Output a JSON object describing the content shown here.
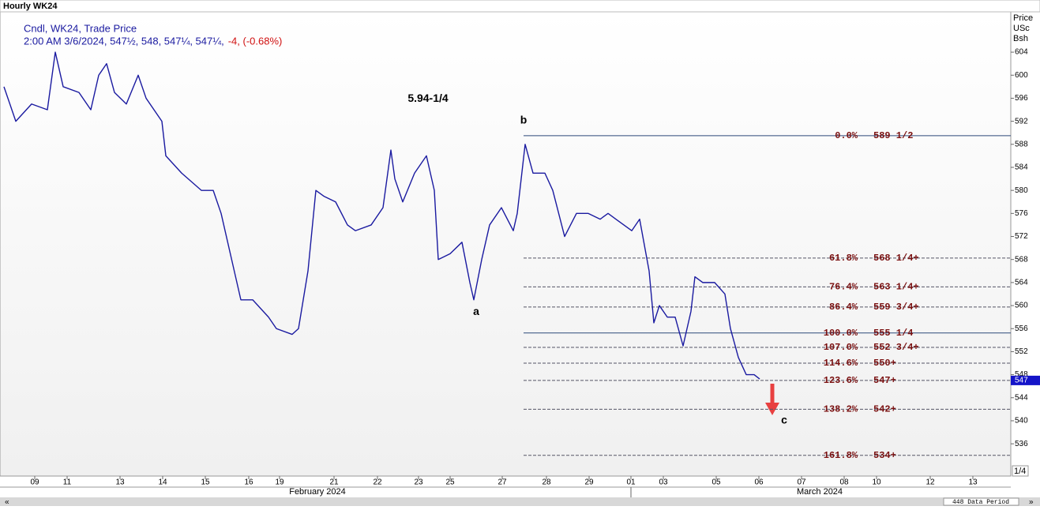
{
  "chart_data": {
    "type": "line",
    "window_title": "Hourly WK24",
    "legend_line": "Cndl, WK24, Trade Price",
    "info": "2:00 AM 3/6/2024, 547½, 548, 547¼, 547¼,",
    "change": "-4, (-0.68%)",
    "axis_header": [
      "Price",
      "USc",
      "Bsh"
    ],
    "months": [
      "February 2024",
      "March 2024"
    ],
    "corner_label": "1/4",
    "scroll_label": "448 Data Period",
    "series": [
      {
        "name": "WK24",
        "color": "#1a1aa0",
        "x": [
          0.5,
          2,
          4,
          6,
          7,
          8,
          10,
          11.5,
          12.5,
          13.5,
          14.5,
          16,
          17.5,
          18.5,
          20.5,
          21,
          23,
          25.5,
          27,
          28,
          29.5,
          30.5,
          32,
          34,
          35,
          37,
          37.8,
          39,
          40,
          41,
          42.5,
          44,
          45,
          47,
          48.5,
          49.5,
          50,
          51,
          52.5,
          54,
          55,
          55.5,
          57,
          58.5,
          59.5,
          60,
          61,
          62,
          63.5,
          65,
          65.5,
          66.5,
          67.5,
          69,
          70,
          71.5,
          73,
          74.5,
          76,
          77,
          78,
          80,
          81,
          82.2,
          82.8,
          83.5,
          84.5,
          85.5,
          86.5,
          87.5,
          88,
          89,
          90.5,
          91.8,
          92.5,
          93.5,
          94.5,
          95.5,
          96.2
        ],
        "values": [
          598,
          592,
          595,
          594,
          604,
          598,
          597,
          594,
          600,
          602,
          597,
          595,
          600,
          596,
          592,
          586,
          583,
          580,
          580,
          576,
          567,
          561,
          561,
          558,
          556,
          555,
          556,
          566,
          580,
          579,
          578,
          574,
          573,
          574,
          577,
          587,
          582,
          578,
          583,
          586,
          580,
          568,
          569,
          571,
          564,
          561,
          568,
          574,
          577,
          573,
          576,
          588,
          583,
          583,
          580,
          572,
          576,
          576,
          575,
          576,
          575,
          573,
          575,
          566,
          557,
          560,
          558,
          558,
          553,
          559,
          565,
          564,
          564,
          562,
          556,
          551,
          548,
          548,
          547.25
        ]
      }
    ],
    "last_price": 547,
    "xlim": [
      0,
      128
    ],
    "xticks": [
      {
        "value": 4.4,
        "label": "09"
      },
      {
        "value": 8.5,
        "label": "11"
      },
      {
        "value": 15.2,
        "label": "13"
      },
      {
        "value": 20.6,
        "label": "14"
      },
      {
        "value": 26,
        "label": "15"
      },
      {
        "value": 31.5,
        "label": "16"
      },
      {
        "value": 35.4,
        "label": "19"
      },
      {
        "value": 42.3,
        "label": "21"
      },
      {
        "value": 47.8,
        "label": "22"
      },
      {
        "value": 53,
        "label": "23"
      },
      {
        "value": 57,
        "label": "25"
      },
      {
        "value": 63.6,
        "label": "27"
      },
      {
        "value": 69.2,
        "label": "28"
      },
      {
        "value": 74.6,
        "label": "29"
      },
      {
        "value": 79.9,
        "label": "01"
      },
      {
        "value": 84,
        "label": "03"
      },
      {
        "value": 90.7,
        "label": "05"
      },
      {
        "value": 96.1,
        "label": "06"
      },
      {
        "value": 101.5,
        "label": "07"
      },
      {
        "value": 106.9,
        "label": "08"
      },
      {
        "value": 111,
        "label": "10"
      },
      {
        "value": 117.8,
        "label": "12"
      },
      {
        "value": 123.2,
        "label": "13"
      }
    ],
    "ylim": [
      530.4,
      611
    ],
    "yticks": [
      536,
      540,
      544,
      548,
      552,
      556,
      560,
      564,
      568,
      572,
      576,
      580,
      584,
      588,
      592,
      596,
      600,
      604
    ],
    "fib_start": 66.3,
    "levels": [
      {
        "pct": "0.0%",
        "label": "589 1/2",
        "value": 589.5,
        "solid": true
      },
      {
        "pct": "61.8%",
        "label": "568 1/4+",
        "value": 568.25
      },
      {
        "pct": "76.4%",
        "label": "563 1/4+",
        "value": 563.25
      },
      {
        "pct": "86.4%",
        "label": "559 3/4+",
        "value": 559.75
      },
      {
        "pct": "100.0%",
        "label": "555 1/4",
        "value": 555.25,
        "solid": true
      },
      {
        "pct": "107.0%",
        "label": "552 3/4+",
        "value": 552.75
      },
      {
        "pct": "114.6%",
        "label": "550+",
        "value": 550
      },
      {
        "pct": "123.6%",
        "label": "547+",
        "value": 547
      },
      {
        "pct": "138.2%",
        "label": "542+",
        "value": 542
      },
      {
        "pct": "161.8%",
        "label": "534+",
        "value": 534
      }
    ],
    "annotations": [
      {
        "text": "5.94-1/4",
        "x": 54.2,
        "y": 595.9
      },
      {
        "text": "b",
        "x": 66.3,
        "y": 592.1
      },
      {
        "text": "a",
        "x": 60.3,
        "y": 558.9
      },
      {
        "text": "c",
        "x": 99.3,
        "y": 540
      }
    ]
  }
}
